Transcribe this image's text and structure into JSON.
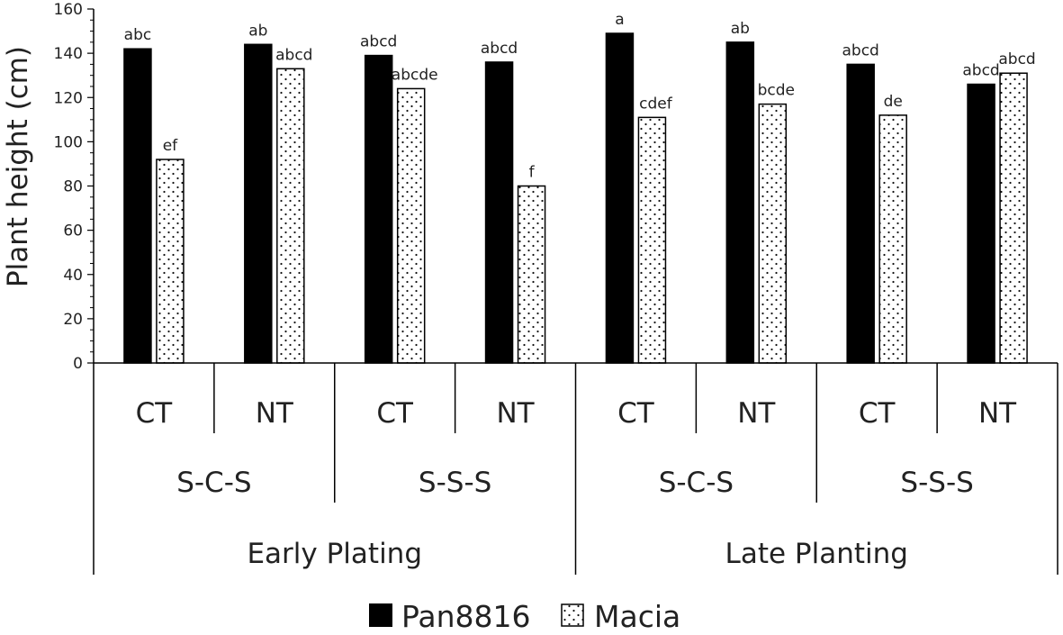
{
  "chart_data": {
    "type": "bar",
    "ylabel": "Plant height (cm)",
    "ylim": [
      0,
      160
    ],
    "yticks": [
      "0",
      "20",
      "40",
      "60",
      "80",
      "100",
      "120",
      "140",
      "160"
    ],
    "categories": [
      "CT",
      "NT",
      "CT",
      "NT",
      "CT",
      "NT",
      "CT",
      "NT"
    ],
    "rotation_groups": [
      "S-C-S",
      "S-S-S",
      "S-C-S",
      "S-S-S"
    ],
    "planting_groups": [
      "Early Plating",
      "Late Planting"
    ],
    "series": [
      {
        "name": "Pan8816",
        "values": [
          142,
          144,
          139,
          136,
          149,
          145,
          135,
          126
        ],
        "labels": [
          "abc",
          "ab",
          "abcd",
          "abcd",
          "a",
          "ab",
          "abcd",
          "abcd"
        ]
      },
      {
        "name": "Macia",
        "values": [
          92,
          133,
          124,
          80,
          111,
          117,
          112,
          131
        ],
        "labels": [
          "ef",
          "abcd",
          "abcde",
          "f",
          "cdef",
          "bcde",
          "de",
          "abcd"
        ]
      }
    ],
    "colors": {
      "Pan8816": "#000000",
      "Macia": "#ffffff"
    },
    "legend_position": "bottom-center"
  }
}
